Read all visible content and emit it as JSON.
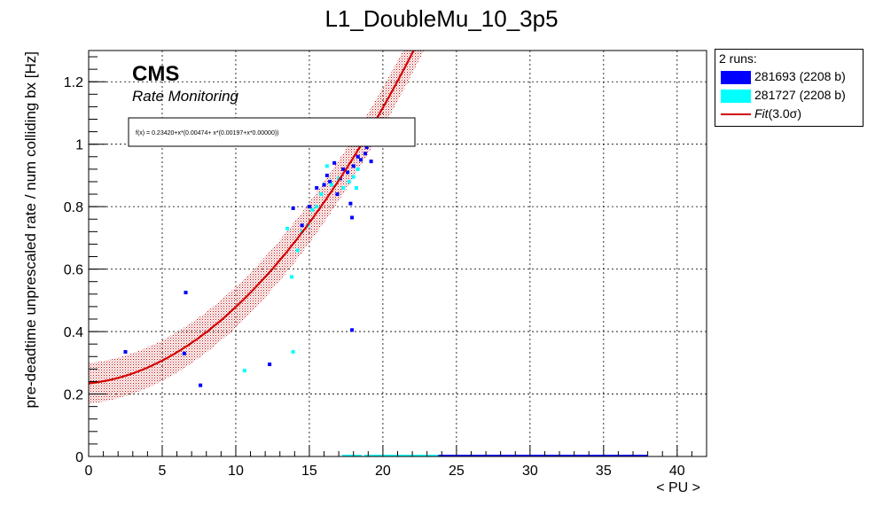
{
  "chart_data": {
    "type": "scatter",
    "title": "L1_DoubleMu_10_3p5",
    "xlabel": "< PU >",
    "ylabel": "pre-deadtime unprescaled rate / num colliding bx [Hz]",
    "xlim": [
      0,
      42
    ],
    "ylim": [
      0,
      1.3
    ],
    "x_ticks": [
      0,
      5,
      10,
      15,
      20,
      25,
      30,
      35,
      40
    ],
    "y_ticks": [
      0,
      0.2,
      0.4,
      0.6,
      0.8,
      1,
      1.2
    ],
    "x_tick_labels": [
      "0",
      "5",
      "10",
      "15",
      "20",
      "25",
      "30",
      "35",
      "40"
    ],
    "y_tick_labels": [
      "0",
      "0.2",
      "0.4",
      "0.6",
      "0.8",
      "1",
      "1.2"
    ],
    "grid": true,
    "cms_label": "CMS",
    "cms_sublabel": "Rate Monitoring",
    "fit_formula": "f(x) = 0.23420+x*(0.00474+ x*(0.00197+x*0.00000))",
    "fit": {
      "coefficients": [
        0.2342,
        0.00474,
        0.00197,
        0.0
      ],
      "sigma": 3.0,
      "band_halfwidth": 0.065,
      "color": "#d40000"
    },
    "legend": {
      "title": "2 runs:",
      "entries": [
        {
          "label": "281693 (2208 b)",
          "color": "#0000ff",
          "kind": "box"
        },
        {
          "label": "281727 (2208 b)",
          "color": "#00ffff",
          "kind": "box"
        },
        {
          "label_main": "Fit",
          "label_paren": "(3.0σ)",
          "color": "#d40000",
          "kind": "line"
        }
      ]
    },
    "series": [
      {
        "name": "281693 (2208 b)",
        "color": "#0000ff",
        "x": [
          2.5,
          6.5,
          6.6,
          7.6,
          12.3,
          13.9,
          14.5,
          15.0,
          15.5,
          16.0,
          16.2,
          16.4,
          16.7,
          16.9,
          17.1,
          17.3,
          17.6,
          17.8,
          17.9,
          17.9,
          18.0,
          18.3,
          18.5,
          18.8,
          18.9,
          19.2,
          23.3,
          24.5,
          25.5,
          26.5,
          27.5,
          28.5,
          29.5,
          30.5,
          31.5,
          32.5,
          33.5,
          34.5,
          35.5,
          36.5,
          37.3
        ],
        "y": [
          0.335,
          0.33,
          0.525,
          0.228,
          0.295,
          0.795,
          0.74,
          0.8,
          0.86,
          0.87,
          0.9,
          0.88,
          0.94,
          0.84,
          0.89,
          0.92,
          0.91,
          0.81,
          0.765,
          0.405,
          0.93,
          0.96,
          0.95,
          0.97,
          0.99,
          0.945,
          0,
          0,
          0,
          0,
          0,
          0,
          0,
          0,
          0,
          0,
          0,
          0,
          0,
          0,
          0
        ]
      },
      {
        "name": "281727 (2208 b)",
        "color": "#00ffff",
        "x": [
          10.6,
          13.5,
          13.8,
          13.9,
          14.2,
          14.5,
          14.9,
          15.2,
          15.5,
          15.8,
          16.2,
          16.5,
          17.0,
          17.3,
          17.7,
          18.0,
          18.3,
          18.2,
          17.9,
          19.4,
          20.2,
          21.0,
          21.8,
          22.6,
          23.1
        ],
        "y": [
          0.275,
          0.73,
          0.575,
          0.335,
          0.66,
          0.72,
          0.74,
          0.79,
          0.8,
          0.84,
          0.93,
          0.87,
          0.89,
          0.86,
          0.88,
          0.895,
          0.92,
          0.86,
          0.0,
          0,
          0,
          0,
          0,
          0,
          0
        ]
      }
    ]
  }
}
